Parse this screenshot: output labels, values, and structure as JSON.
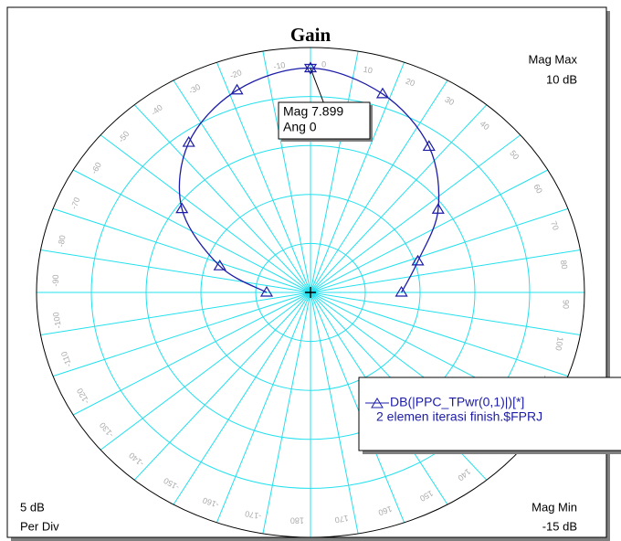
{
  "chart_data": {
    "type": "polar",
    "title": "Gain",
    "x": [
      -90,
      -72,
      -54,
      -36,
      -18,
      0,
      18,
      36,
      54,
      72,
      90
    ],
    "series": [
      {
        "name": [
          "DB(|PPC_TPwr(0,1)|)[*]",
          "2 elemen iterasi finish.$FPRJ"
        ],
        "color": "#1c1ca8",
        "values": [
          -11,
          -6.3,
          -0.5,
          3.9,
          6.7,
          7.899,
          6.3,
          3.4,
          -0.6,
          -4.7,
          -6.7
        ]
      }
    ],
    "rlim": [
      {
        "value": -15,
        "label": "-15 dB"
      },
      {
        "value": 10,
        "label": "10 dB"
      }
    ],
    "rlim_names": [
      "Mag Min",
      "Mag Max"
    ],
    "rstep": {
      "value": 5,
      "label": "5 dB"
    },
    "rstep_name": "Per Div",
    "rticks": [
      -10,
      -5,
      0,
      5
    ],
    "angle_ticks": [
      -170,
      -160,
      -150,
      -140,
      -130,
      -120,
      -110,
      -100,
      -90,
      -80,
      -70,
      -60,
      -50,
      -40,
      -30,
      -20,
      -10,
      0,
      10,
      20,
      30,
      40,
      50,
      60,
      70,
      80,
      90,
      100,
      110,
      120,
      130,
      140,
      150,
      160,
      170,
      180
    ],
    "grid_color": "#22e0ee",
    "marker_annotation": {
      "index": 5,
      "lines": [
        "Mag 7.899",
        "Ang 0"
      ]
    }
  }
}
